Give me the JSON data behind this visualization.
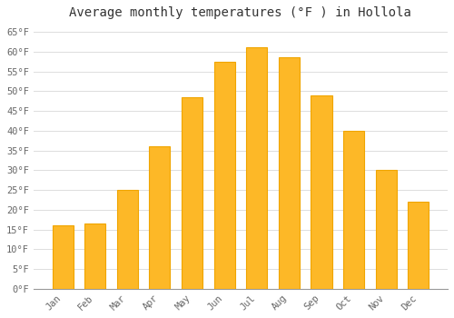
{
  "title": "Average monthly temperatures (°F ) in Hollola",
  "months": [
    "Jan",
    "Feb",
    "Mar",
    "Apr",
    "May",
    "Jun",
    "Jul",
    "Aug",
    "Sep",
    "Oct",
    "Nov",
    "Dec"
  ],
  "values": [
    16,
    16.5,
    25,
    36,
    48.5,
    57.5,
    61,
    58.5,
    49,
    40,
    30,
    22
  ],
  "bar_color": "#FDB827",
  "bar_edge_color": "#F0A500",
  "ylim": [
    0,
    67
  ],
  "yticks": [
    0,
    5,
    10,
    15,
    20,
    25,
    30,
    35,
    40,
    45,
    50,
    55,
    60,
    65
  ],
  "ytick_labels": [
    "0°F",
    "5°F",
    "10°F",
    "15°F",
    "20°F",
    "25°F",
    "30°F",
    "35°F",
    "40°F",
    "45°F",
    "50°F",
    "55°F",
    "60°F",
    "65°F"
  ],
  "title_fontsize": 10,
  "tick_fontsize": 7.5,
  "bg_color": "#ffffff",
  "grid_color": "#dddddd",
  "bar_width": 0.65
}
